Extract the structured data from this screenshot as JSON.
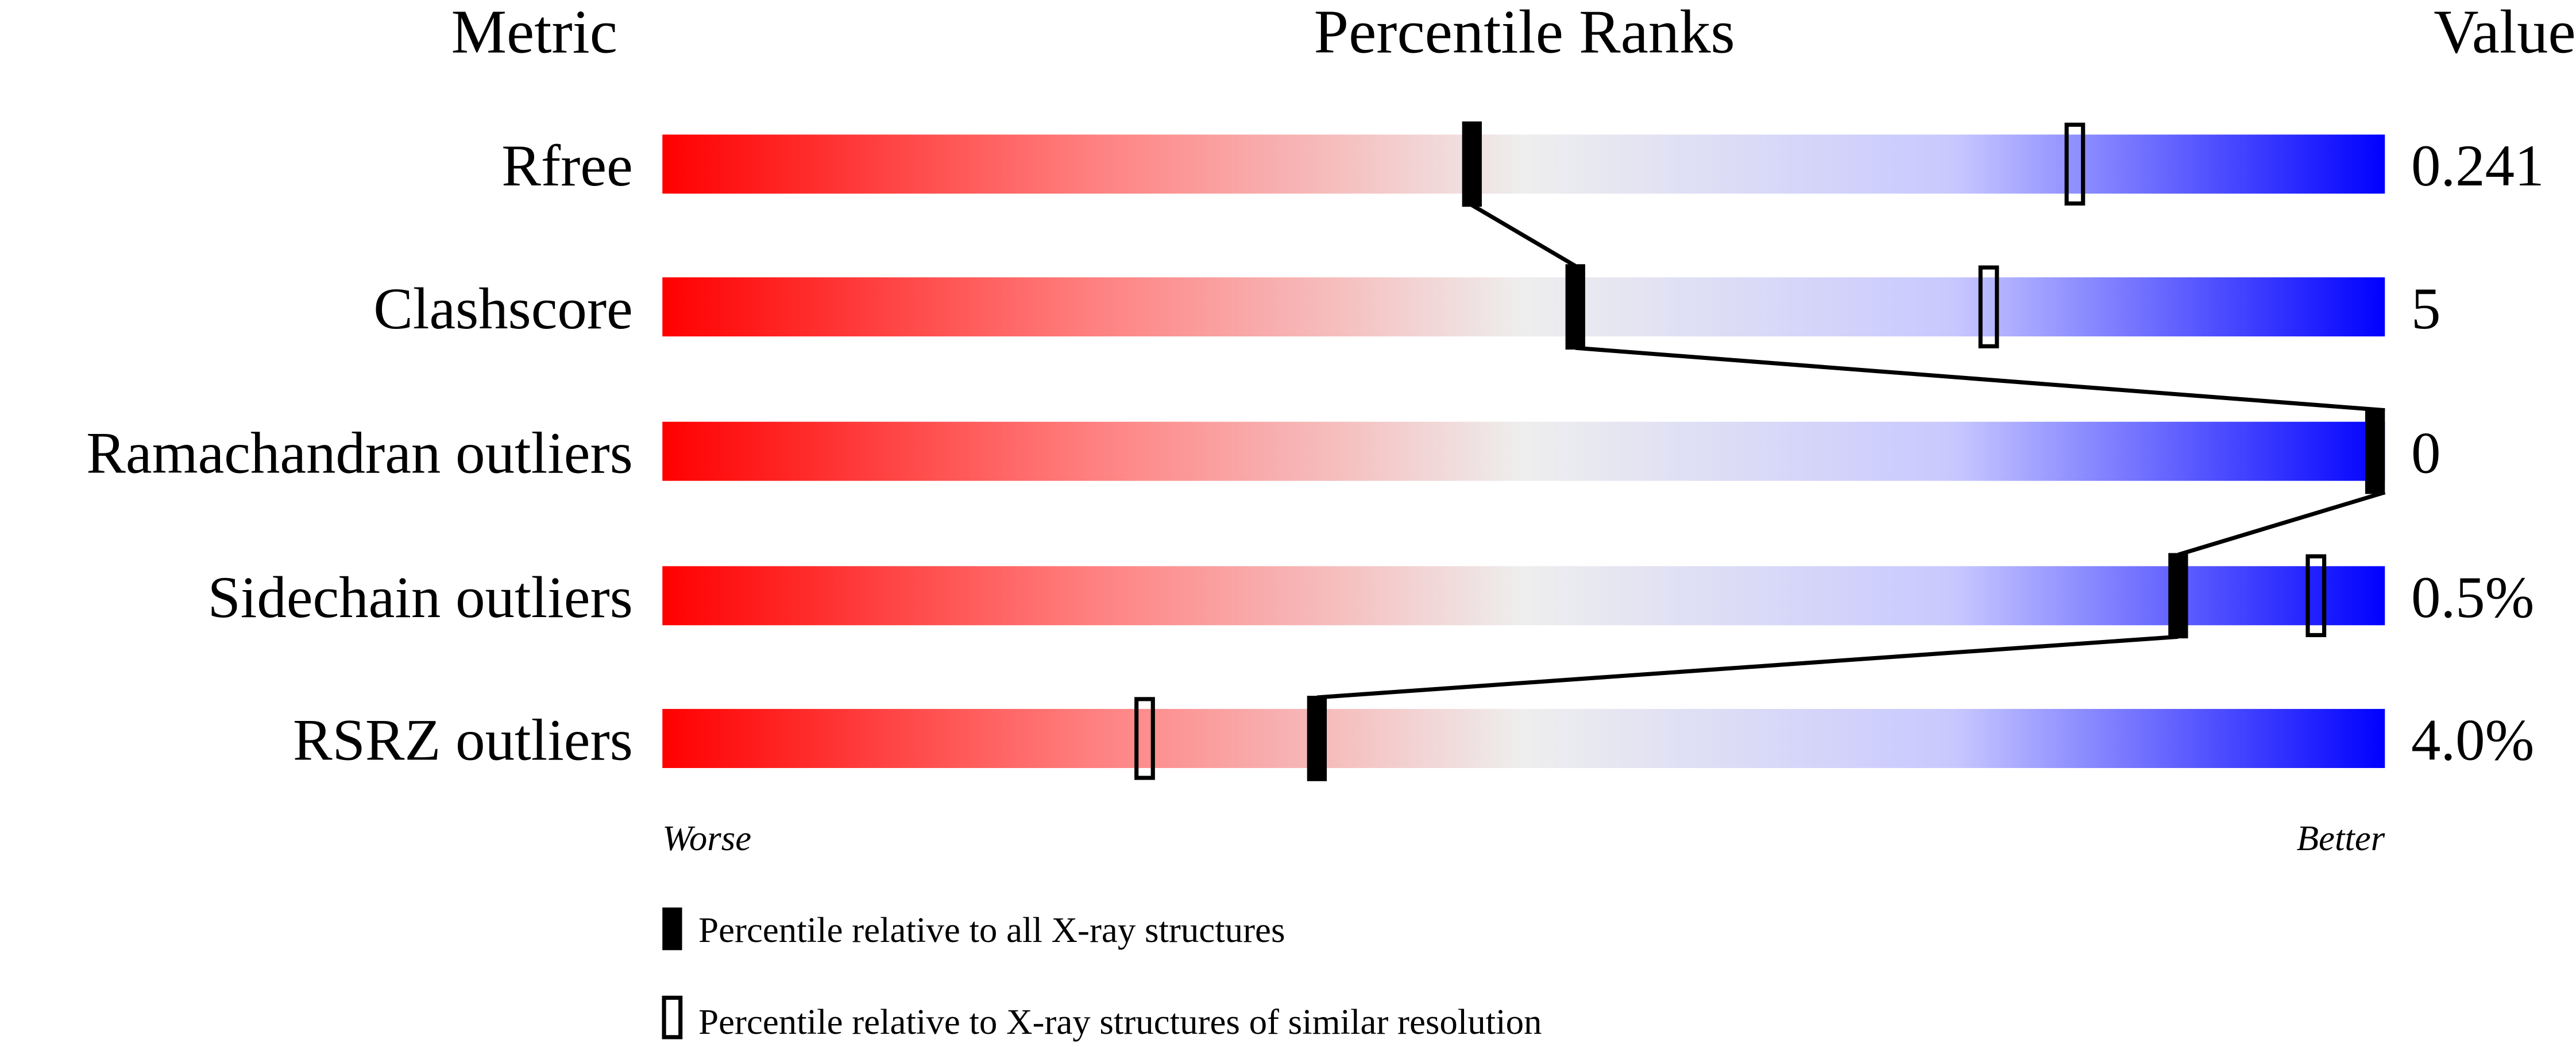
{
  "chart_data": {
    "type": "percentile-slider",
    "headers": {
      "metric": "Metric",
      "ranks": "Percentile Ranks",
      "value": "Value"
    },
    "xlim": [
      0,
      100
    ],
    "metrics": [
      {
        "name": "Rfree",
        "value": "0.241",
        "percentile_all": 47,
        "percentile_similar": 82
      },
      {
        "name": "Clashscore",
        "value": "5",
        "percentile_all": 53,
        "percentile_similar": 77
      },
      {
        "name": "Ramachandran outliers",
        "value": "0",
        "percentile_all": 100,
        "percentile_similar": null
      },
      {
        "name": "Sidechain outliers",
        "value": "0.5%",
        "percentile_all": 88,
        "percentile_similar": 96
      },
      {
        "name": "RSRZ outliers",
        "value": "4.0%",
        "percentile_all": 38,
        "percentile_similar": 28
      }
    ],
    "axis": {
      "left": "Worse",
      "right": "Better"
    },
    "legend": {
      "filled": "Percentile relative to all X-ray structures",
      "open": "Percentile relative to X-ray structures of similar resolution"
    },
    "colors": {
      "worse": "#ff0000",
      "middle": "#eeeeee",
      "better": "#0000ff",
      "marker": "#000000"
    }
  }
}
